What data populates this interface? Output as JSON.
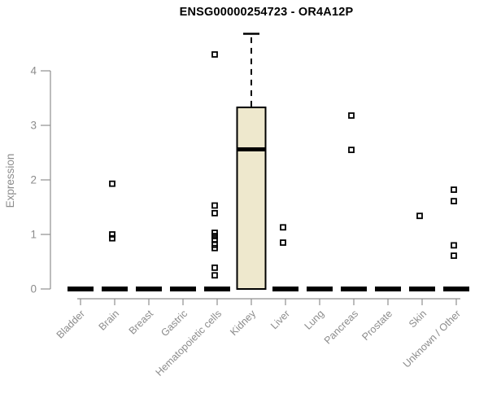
{
  "chart_data": {
    "type": "boxplot",
    "title": "ENSG00000254723 - OR4A12P",
    "ylabel": "Expression",
    "yticks": [
      0,
      1,
      2,
      3,
      4
    ],
    "ylim": [
      0,
      4.8
    ],
    "grid": false,
    "legend": null,
    "categories": [
      "Bladder",
      "Brain",
      "Breast",
      "Gastric",
      "Hematopoietic cells",
      "Kidney",
      "Liver",
      "Lung",
      "Pancreas",
      "Prostate",
      "Skin",
      "Unknown / Other"
    ],
    "boxes": [
      {
        "category": "Bladder",
        "median": 0,
        "q1": 0,
        "q3": 0,
        "whisker_low": 0,
        "whisker_high": 0,
        "outliers": []
      },
      {
        "category": "Brain",
        "median": 0,
        "q1": 0,
        "q3": 0,
        "whisker_low": 0,
        "whisker_high": 0,
        "outliers": [
          1.93,
          1.0,
          0.93
        ]
      },
      {
        "category": "Breast",
        "median": 0,
        "q1": 0,
        "q3": 0,
        "whisker_low": 0,
        "whisker_high": 0,
        "outliers": []
      },
      {
        "category": "Gastric",
        "median": 0,
        "q1": 0,
        "q3": 0,
        "whisker_low": 0,
        "whisker_high": 0,
        "outliers": []
      },
      {
        "category": "Hematopoietic cells",
        "median": 0,
        "q1": 0,
        "q3": 0,
        "whisker_low": 0,
        "whisker_high": 0,
        "outliers": [
          4.3,
          1.53,
          1.39,
          1.03,
          0.97,
          0.91,
          0.81,
          0.75,
          0.39,
          0.25
        ]
      },
      {
        "category": "Kidney",
        "median": 2.56,
        "q1": 0,
        "q3": 3.33,
        "whisker_low": 0,
        "whisker_high": 4.68,
        "outliers": []
      },
      {
        "category": "Liver",
        "median": 0,
        "q1": 0,
        "q3": 0,
        "whisker_low": 0,
        "whisker_high": 0,
        "outliers": [
          1.13,
          0.85
        ]
      },
      {
        "category": "Lung",
        "median": 0,
        "q1": 0,
        "q3": 0,
        "whisker_low": 0,
        "whisker_high": 0,
        "outliers": []
      },
      {
        "category": "Pancreas",
        "median": 0,
        "q1": 0,
        "q3": 0,
        "whisker_low": 0,
        "whisker_high": 0,
        "outliers": [
          3.18,
          2.55
        ]
      },
      {
        "category": "Prostate",
        "median": 0,
        "q1": 0,
        "q3": 0,
        "whisker_low": 0,
        "whisker_high": 0,
        "outliers": []
      },
      {
        "category": "Skin",
        "median": 0,
        "q1": 0,
        "q3": 0,
        "whisker_low": 0,
        "whisker_high": 0,
        "outliers": [
          1.34
        ]
      },
      {
        "category": "Unknown / Other",
        "median": 0,
        "q1": 0,
        "q3": 0,
        "whisker_low": 0,
        "whisker_high": 0,
        "outliers": [
          1.82,
          1.61,
          0.8,
          0.61
        ]
      }
    ],
    "style": {
      "background": "#FFFFFF",
      "box_fill": "#EEE8CD",
      "box_border": "#000000",
      "median_color": "#000000",
      "whisker_color": "#000000",
      "outlier_color": "#000000",
      "axis_color": "#909090",
      "tick_label_color": "#8C8C8C",
      "title_color": "#000000"
    }
  }
}
